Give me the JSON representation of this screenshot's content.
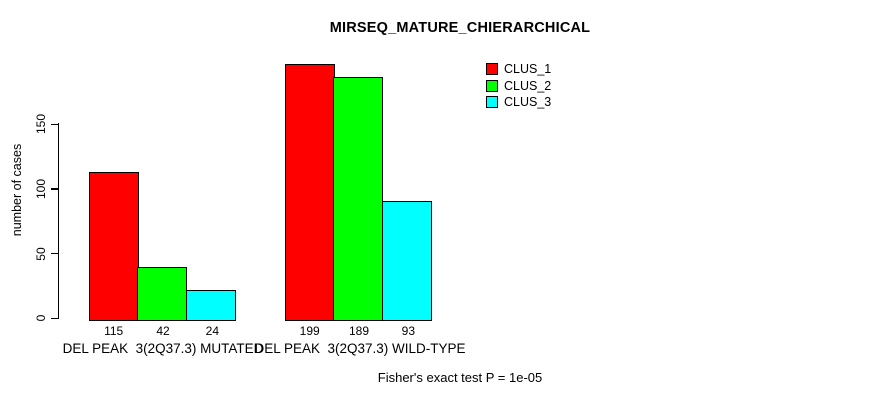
{
  "chart_data": {
    "type": "bar",
    "title": "MIRSEQ_MATURE_CHIERARCHICAL",
    "xlabel": "",
    "ylabel": "number of cases",
    "categories": [
      "DEL PEAK  3(2Q37.3) MUTATED",
      "DEL PEAK  3(2Q37.3) WILD-TYPE"
    ],
    "series": [
      {
        "name": "CLUS_1",
        "color": "#FF0000",
        "values": [
          115,
          199
        ]
      },
      {
        "name": "CLUS_2",
        "color": "#00FF00",
        "values": [
          42,
          189
        ]
      },
      {
        "name": "CLUS_3",
        "color": "#00FFFF",
        "values": [
          24,
          93
        ]
      }
    ],
    "yticks": [
      0,
      50,
      100,
      150
    ],
    "ylim": [
      0,
      210
    ],
    "grid": false,
    "bar_value_labels_shown": true,
    "legend_position": "top-right",
    "annotation": "Fisher's exact test P = 1e-05"
  },
  "colors": {
    "background": "#FFFFFF",
    "axis": "#000000",
    "bar_border": "#000000"
  }
}
